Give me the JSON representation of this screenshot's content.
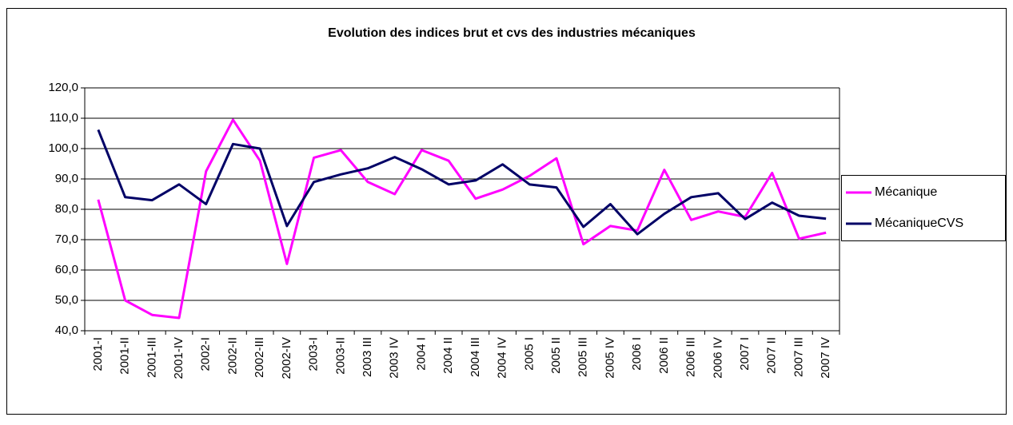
{
  "chart_data": {
    "type": "line",
    "title": "Evolution des indices brut et cvs des industries mécaniques",
    "categories": [
      "2001-I",
      "2001-II",
      "2001-III",
      "2001-IV",
      "2002-I",
      "2002-II",
      "2002-III",
      "2002-IV",
      "2003-I",
      "2003-II",
      "2003 III",
      "2003 IV",
      "2004 I",
      "2004 II",
      "2004 III",
      "2004 IV",
      "2005 I",
      "2005 II",
      "2005 III",
      "2005 IV",
      "2006 I",
      "2006 II",
      "2006 III",
      "2006 IV",
      "2007 I",
      "2007 II",
      "2007 III",
      "2007 IV"
    ],
    "series": [
      {
        "name": "Mécanique",
        "color": "#ff00ff",
        "values": [
          83.2,
          50,
          45.2,
          44.2,
          92.5,
          109.5,
          96,
          62,
          97,
          99.5,
          89,
          85,
          99.5,
          96,
          83.5,
          86.5,
          91,
          96.8,
          68.5,
          74.5,
          73,
          93,
          76.5,
          79.3,
          77.5,
          92,
          70.3,
          72.3
        ]
      },
      {
        "name": "MécaniqueCVS",
        "color": "#000066",
        "values": [
          106.2,
          84,
          83,
          88.2,
          81.7,
          101.5,
          100,
          74.5,
          89,
          91.5,
          93.5,
          97.2,
          93.2,
          88.2,
          89.5,
          94.8,
          88.2,
          87.2,
          74.2,
          81.7,
          71.8,
          78.5,
          84,
          85.3,
          76.8,
          82.2,
          77.9,
          76.9
        ]
      }
    ],
    "ylim": [
      40,
      120
    ],
    "yticks": [
      {
        "value": 40,
        "label": "40,0"
      },
      {
        "value": 50,
        "label": "50,0"
      },
      {
        "value": 60,
        "label": "60,0"
      },
      {
        "value": 70,
        "label": "70,0"
      },
      {
        "value": 80,
        "label": "80,0"
      },
      {
        "value": 90,
        "label": "90,0"
      },
      {
        "value": 100,
        "label": "100,0"
      },
      {
        "value": 110,
        "label": "110,0"
      },
      {
        "value": 120,
        "label": "120,0"
      }
    ],
    "grid": true,
    "legend": "right"
  }
}
